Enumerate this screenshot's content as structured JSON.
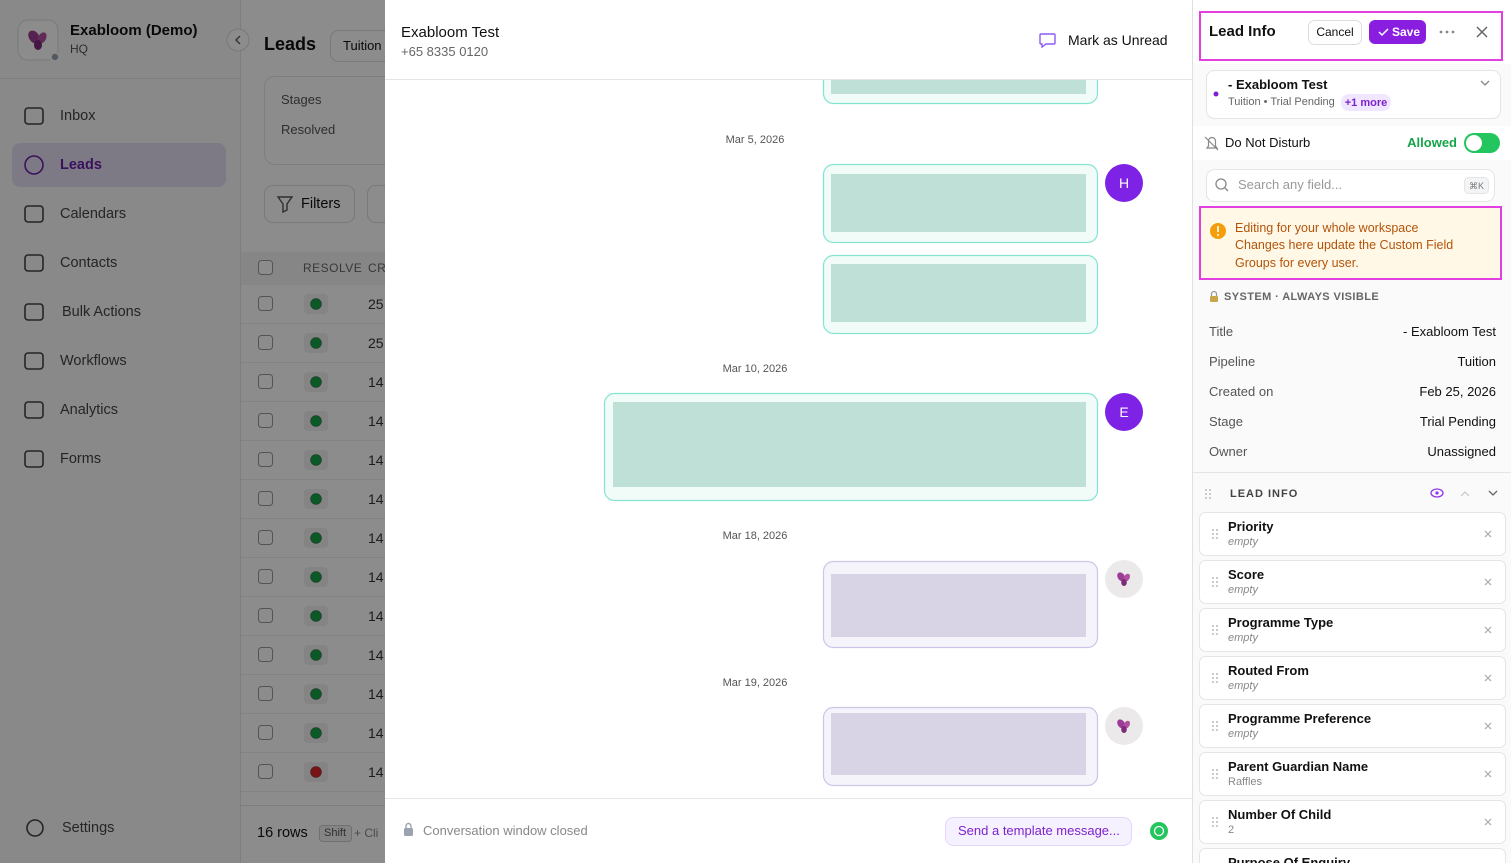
{
  "sidebar": {
    "org_name": "Exabloom (Demo)",
    "org_subtitle": "HQ",
    "nav": [
      "Inbox",
      "Leads",
      "Calendars",
      "Contacts",
      "Bulk Actions",
      "Workflows",
      "Analytics",
      "Forms"
    ],
    "active_nav": 1,
    "settings": "Settings"
  },
  "leads_page": {
    "title": "Leads",
    "pipeline_button": "Tuition",
    "stages_label": "Stages",
    "resolved_label": "Resolved",
    "filters_button": "Filters",
    "columns": [
      "RESOLVE",
      "CR"
    ],
    "rows": [
      {
        "status": "green",
        "value": "25"
      },
      {
        "status": "green",
        "value": "25"
      },
      {
        "status": "green",
        "value": "14"
      },
      {
        "status": "green",
        "value": "14"
      },
      {
        "status": "green",
        "value": "14"
      },
      {
        "status": "green",
        "value": "14"
      },
      {
        "status": "green",
        "value": "14"
      },
      {
        "status": "green",
        "value": "14"
      },
      {
        "status": "green",
        "value": "14"
      },
      {
        "status": "green",
        "value": "14"
      },
      {
        "status": "green",
        "value": "14"
      },
      {
        "status": "green",
        "value": "14"
      },
      {
        "status": "red",
        "value": "14"
      }
    ],
    "row_count": "16 rows",
    "shortcut_key": "Shift",
    "shortcut_hint": "+ Cli"
  },
  "conversation": {
    "contact_name": "Exabloom Test",
    "phone": "+65 8335 0120",
    "mark_unread": "Mark as Unread",
    "dates": [
      "Mar 5, 2026",
      "Mar 10, 2026",
      "Mar 18, 2026",
      "Mar 19, 2026"
    ],
    "agent_initials": [
      "H",
      "E"
    ],
    "status": "Conversation window closed",
    "template_button": "Send a template message..."
  },
  "lead_info": {
    "title": "Lead Info",
    "cancel": "Cancel",
    "save": "Save",
    "lead_card": {
      "title": "- Exabloom Test",
      "subtitle": "Tuition • Trial Pending",
      "more": "+1 more"
    },
    "do_not_disturb": {
      "label": "Do Not Disturb",
      "state": "Allowed"
    },
    "search": {
      "placeholder": "Search any field...",
      "shortcut": "⌘K"
    },
    "warning": {
      "title": "Editing for your whole workspace",
      "body": "Changes here update the Custom Field Groups for every user."
    },
    "system_section": "SYSTEM · ALWAYS VISIBLE",
    "system_fields": [
      {
        "label": "Title",
        "value": "- Exabloom Test"
      },
      {
        "label": "Pipeline",
        "value": "Tuition"
      },
      {
        "label": "Created on",
        "value": "Feb 25, 2026"
      },
      {
        "label": "Stage",
        "value": "Trial Pending"
      },
      {
        "label": "Owner",
        "value": "Unassigned"
      }
    ],
    "section_title": "LEAD INFO",
    "fields": [
      {
        "label": "Priority",
        "value": "empty"
      },
      {
        "label": "Score",
        "value": "empty"
      },
      {
        "label": "Programme Type",
        "value": "empty"
      },
      {
        "label": "Routed From",
        "value": "empty"
      },
      {
        "label": "Programme Preference",
        "value": "empty"
      },
      {
        "label": "Parent Guardian Name",
        "value": "Raffles"
      },
      {
        "label": "Number Of Child",
        "value": "2"
      },
      {
        "label": "Purpose Of Enquiry"
      }
    ]
  }
}
